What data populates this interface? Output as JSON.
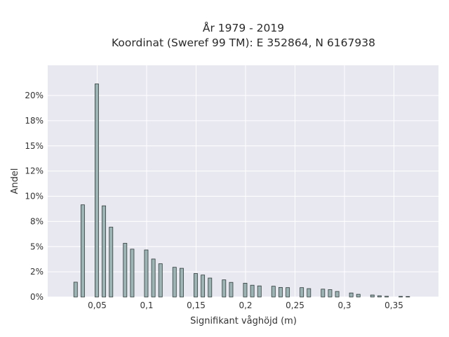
{
  "chart_data": {
    "type": "bar",
    "title_lines": [
      "År 1979 - 2019",
      "Koordinat (Sweref 99 TM): E 352864, N 6167938"
    ],
    "xlabel": "Signifikant våghöjd (m)",
    "ylabel": "Andel",
    "xlim": [
      0.0,
      0.395
    ],
    "ylim": [
      0,
      0.23
    ],
    "x_ticks": [
      0.05,
      0.1,
      0.15,
      0.2,
      0.25,
      0.3,
      0.35
    ],
    "x_tick_labels": [
      "0,05",
      "0,1",
      "0,15",
      "0,2",
      "0,25",
      "0,3",
      "0,35"
    ],
    "y_ticks": [
      0,
      0.025,
      0.05,
      0.075,
      0.1,
      0.125,
      0.15,
      0.175,
      0.2
    ],
    "y_tick_labels": [
      "0%",
      "2%",
      "5%",
      "8%",
      "10%",
      "12%",
      "15%",
      "18%",
      "20%"
    ],
    "grid": true,
    "bar_color": "#9cb4b4",
    "bar_edge_color": "#2f3b3b",
    "plot_bg": "#e8e8f0",
    "bar_width": 0.0036,
    "bars": [
      {
        "x": 0.0282,
        "y": 0.0147
      },
      {
        "x": 0.0354,
        "y": 0.0915
      },
      {
        "x": 0.0496,
        "y": 0.2115
      },
      {
        "x": 0.0568,
        "y": 0.0905
      },
      {
        "x": 0.064,
        "y": 0.0693
      },
      {
        "x": 0.0782,
        "y": 0.0533
      },
      {
        "x": 0.0854,
        "y": 0.0475
      },
      {
        "x": 0.0996,
        "y": 0.0467
      },
      {
        "x": 0.1068,
        "y": 0.0377
      },
      {
        "x": 0.114,
        "y": 0.033
      },
      {
        "x": 0.1282,
        "y": 0.0295
      },
      {
        "x": 0.1354,
        "y": 0.0285
      },
      {
        "x": 0.1496,
        "y": 0.0233
      },
      {
        "x": 0.1568,
        "y": 0.0218
      },
      {
        "x": 0.164,
        "y": 0.0188
      },
      {
        "x": 0.1782,
        "y": 0.017
      },
      {
        "x": 0.1854,
        "y": 0.0145
      },
      {
        "x": 0.1996,
        "y": 0.0137
      },
      {
        "x": 0.2068,
        "y": 0.0117
      },
      {
        "x": 0.214,
        "y": 0.011
      },
      {
        "x": 0.2282,
        "y": 0.0107
      },
      {
        "x": 0.2354,
        "y": 0.0095
      },
      {
        "x": 0.2426,
        "y": 0.0093
      },
      {
        "x": 0.2568,
        "y": 0.0093
      },
      {
        "x": 0.264,
        "y": 0.0083
      },
      {
        "x": 0.2782,
        "y": 0.0078
      },
      {
        "x": 0.2854,
        "y": 0.0073
      },
      {
        "x": 0.2926,
        "y": 0.0055
      },
      {
        "x": 0.3068,
        "y": 0.004
      },
      {
        "x": 0.314,
        "y": 0.0027
      },
      {
        "x": 0.3282,
        "y": 0.002
      },
      {
        "x": 0.3354,
        "y": 0.0012
      },
      {
        "x": 0.3426,
        "y": 0.0007
      },
      {
        "x": 0.3568,
        "y": 0.0006
      },
      {
        "x": 0.364,
        "y": 0.0005
      }
    ]
  }
}
